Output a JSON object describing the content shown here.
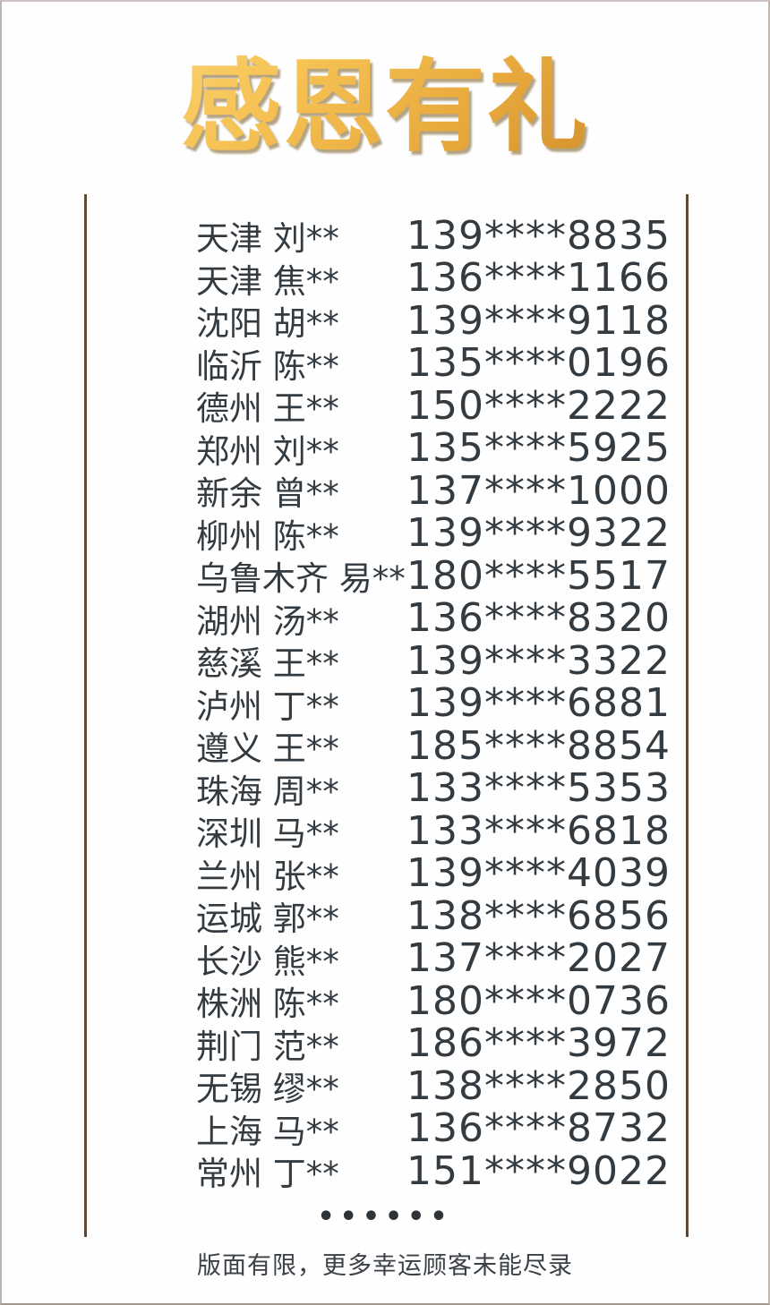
{
  "title": "感恩有礼",
  "footer": {
    "dots": "••••••",
    "note": "版面有限，更多幸运顾客未能尽录"
  },
  "colors": {
    "title_gradient_light": "#ffe08a",
    "title_gradient_dark": "#c07a1e",
    "title_shadow": "#74581e",
    "side_line": "#5a4839",
    "list_text": "#333a40",
    "background": "#fefefe",
    "outer_border": "#b5aaa4"
  },
  "winners": [
    {
      "name": "天津 刘**",
      "phone": "139****8835"
    },
    {
      "name": "天津 焦**",
      "phone": "136****1166"
    },
    {
      "name": "沈阳 胡**",
      "phone": "139****9118"
    },
    {
      "name": "临沂 陈**",
      "phone": "135****0196"
    },
    {
      "name": "德州 王**",
      "phone": "150****2222"
    },
    {
      "name": "郑州 刘**",
      "phone": "135****5925"
    },
    {
      "name": "新余 曾**",
      "phone": "137****1000"
    },
    {
      "name": "柳州 陈**",
      "phone": "139****9322"
    },
    {
      "name": "乌鲁木齐 易**",
      "phone": "180****5517"
    },
    {
      "name": "湖州 汤**",
      "phone": "136****8320"
    },
    {
      "name": "慈溪 王**",
      "phone": "139****3322"
    },
    {
      "name": "泸州 丁**",
      "phone": "139****6881"
    },
    {
      "name": "遵义 王**",
      "phone": "185****8854"
    },
    {
      "name": "珠海 周**",
      "phone": "133****5353"
    },
    {
      "name": "深圳 马**",
      "phone": "133****6818"
    },
    {
      "name": "兰州 张**",
      "phone": "139****4039"
    },
    {
      "name": "运城 郭**",
      "phone": "138****6856"
    },
    {
      "name": "长沙 熊**",
      "phone": "137****2027"
    },
    {
      "name": "株洲 陈**",
      "phone": "180****0736"
    },
    {
      "name": "荆门 范**",
      "phone": "186****3972"
    },
    {
      "name": "无锡 缪**",
      "phone": "138****2850"
    },
    {
      "name": "上海 马**",
      "phone": "136****8732"
    },
    {
      "name": "常州 丁**",
      "phone": "151****9022"
    }
  ]
}
